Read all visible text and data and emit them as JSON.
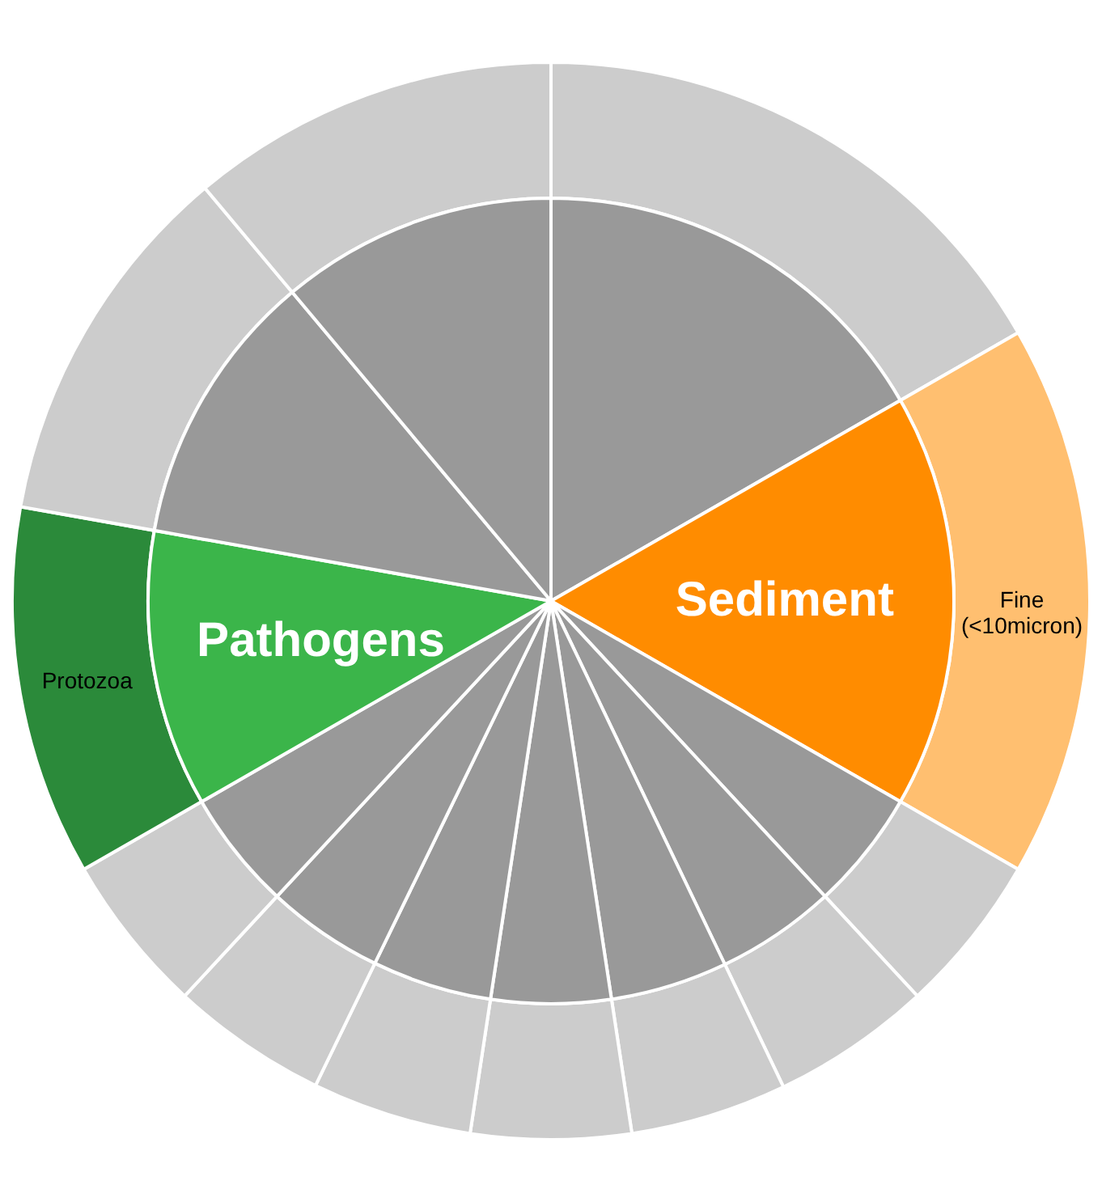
{
  "chart_data": {
    "type": "pie",
    "categories": [
      null,
      "Sediment",
      null,
      null,
      null,
      null,
      null,
      null,
      null,
      "Pathogens",
      null,
      null
    ],
    "series": [
      {
        "values": [
          16.7,
          16.6,
          4.8,
          4.8,
          4.7,
          4.8,
          4.8,
          4.7,
          4.8,
          11.1,
          11.1,
          11.1
        ],
        "colors": [
          "#999999",
          "#ff8c00",
          "#999999",
          "#999999",
          "#999999",
          "#999999",
          "#999999",
          "#999999",
          "#999999",
          "#3bb54a",
          "#999999",
          "#999999"
        ]
      },
      {
        "type": "donut",
        "values": [
          16.7,
          16.6,
          4.8,
          4.8,
          4.7,
          4.8,
          4.8,
          4.7,
          4.8,
          11.1,
          11.1,
          11.1
        ],
        "colors": [
          "#cccccc",
          "#ffbf70",
          "#cccccc",
          "#cccccc",
          "#cccccc",
          "#cccccc",
          "#cccccc",
          "#cccccc",
          "#cccccc",
          "#2b8a3a",
          "#cccccc",
          "#cccccc"
        ],
        "value_labels": [
          null,
          "Fine\n(<10micron)",
          null,
          null,
          null,
          null,
          null,
          null,
          null,
          "Protozoa",
          null,
          null
        ]
      }
    ]
  }
}
